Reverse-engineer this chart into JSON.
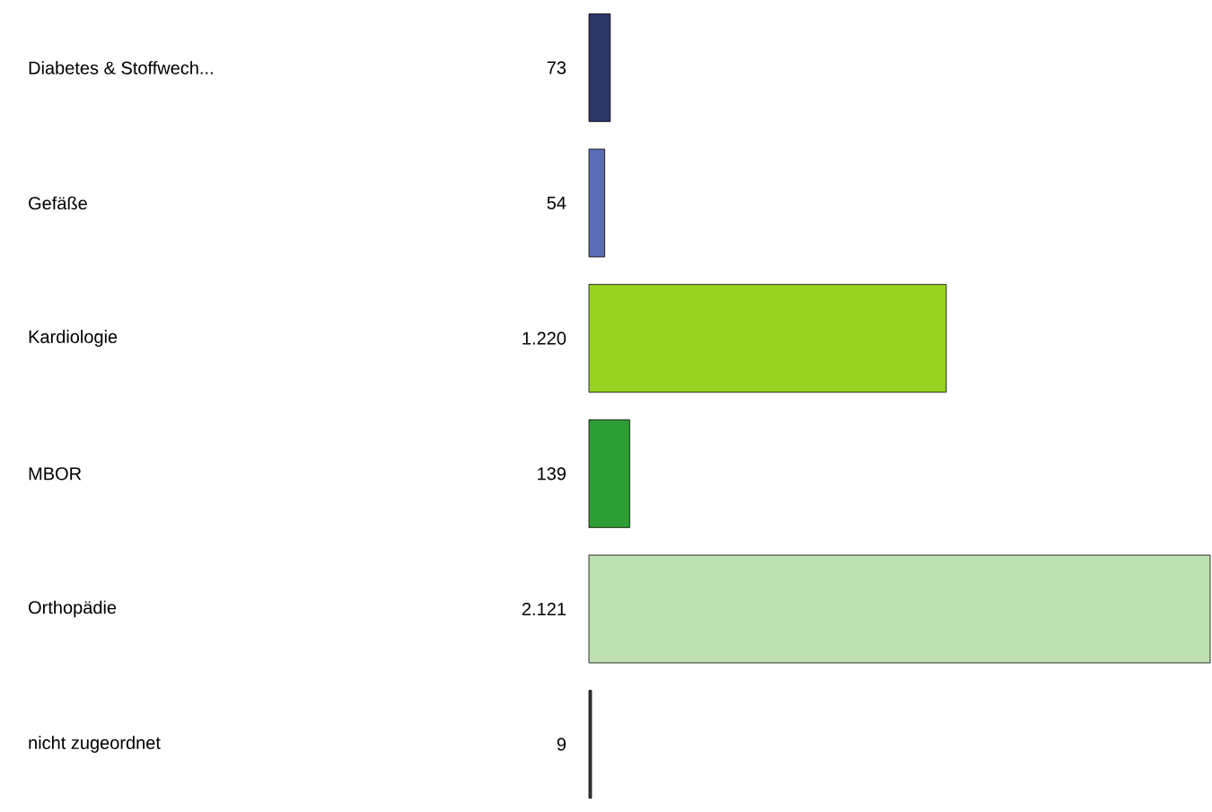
{
  "chart_data": {
    "type": "bar",
    "orientation": "horizontal",
    "categories": [
      "Diabetes & Stoffwech...",
      "Gefäße",
      "Kardiologie",
      "MBOR",
      "Orthopädie",
      "nicht zugeordnet"
    ],
    "values": [
      73,
      54,
      1220,
      139,
      2121,
      9
    ],
    "colors": [
      "#2b3766",
      "#5b6cb4",
      "#9ad222",
      "#2e9e34",
      "#bfe0b0",
      "#3a3a3a"
    ],
    "value_labels": [
      "73",
      "54",
      "1.220",
      "139",
      "2.121",
      "9"
    ]
  }
}
